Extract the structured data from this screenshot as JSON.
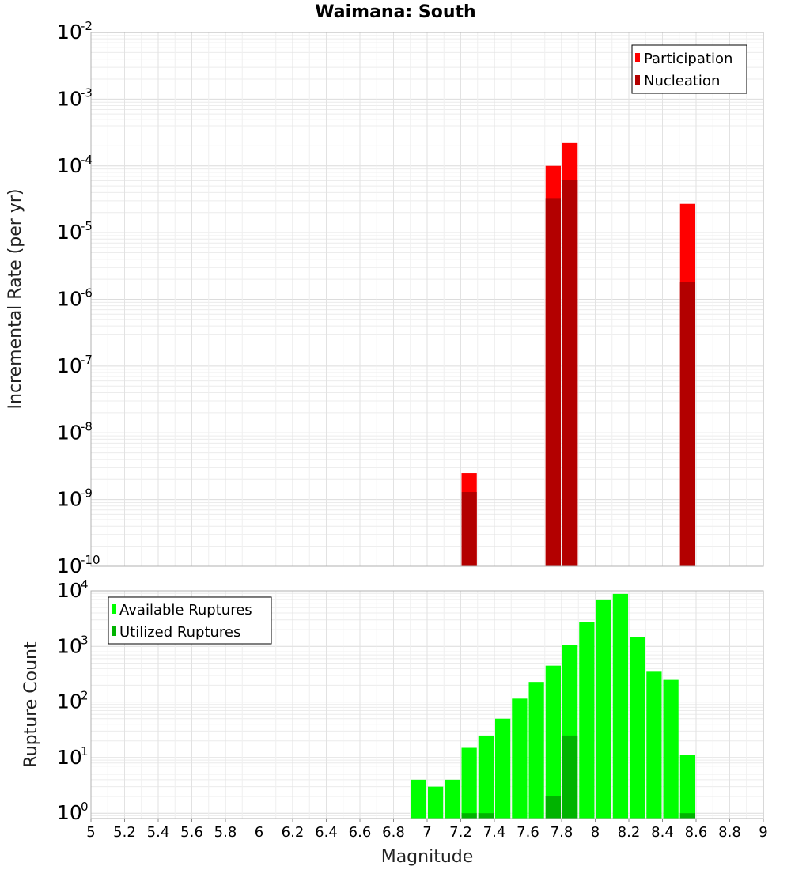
{
  "chart_data": [
    {
      "type": "bar",
      "title": "Waimana: South",
      "xlabel": "",
      "ylabel": "Incremental Rate (per yr)",
      "yscale": "log",
      "xlim": [
        5,
        9
      ],
      "ylim": [
        1e-10,
        0.01
      ],
      "grid": true,
      "legend_position": "top-right",
      "bar_width": 0.1,
      "colors": {
        "Participation": "#ff0000",
        "Nucleation": "#b30000"
      },
      "series": [
        {
          "name": "Participation",
          "x": [
            7.25,
            7.75,
            7.85,
            8.55
          ],
          "values": [
            2.5e-09,
            0.0001,
            0.00022,
            2.7e-05
          ]
        },
        {
          "name": "Nucleation",
          "x": [
            7.25,
            7.75,
            7.85,
            8.55
          ],
          "values": [
            1.3e-09,
            3.3e-05,
            6.2e-05,
            1.8e-06
          ]
        }
      ],
      "y_tick_exponents": [
        "-10",
        "-9",
        "-8",
        "-7",
        "-6",
        "-5",
        "-4",
        "-3",
        "-2"
      ]
    },
    {
      "type": "bar",
      "title": "",
      "xlabel": "Magnitude",
      "ylabel": "Rupture Count",
      "yscale": "log",
      "xlim": [
        5,
        9
      ],
      "ylim": [
        0.8,
        10000
      ],
      "grid": true,
      "legend_position": "top-left",
      "bar_width": 0.1,
      "colors": {
        "Available Ruptures": "#00ff00",
        "Utilized Ruptures": "#00b300"
      },
      "series": [
        {
          "name": "Available Ruptures",
          "x": [
            6.95,
            7.05,
            7.15,
            7.25,
            7.35,
            7.45,
            7.55,
            7.65,
            7.75,
            7.85,
            7.95,
            8.05,
            8.15,
            8.25,
            8.35,
            8.45,
            8.55
          ],
          "values": [
            4,
            3,
            4,
            15,
            25,
            50,
            115,
            230,
            450,
            1050,
            2700,
            7000,
            8800,
            1450,
            350,
            250,
            11
          ]
        },
        {
          "name": "Utilized Ruptures",
          "x": [
            7.25,
            7.35,
            7.75,
            7.85,
            8.55
          ],
          "values": [
            1,
            1,
            2,
            25,
            1
          ]
        }
      ],
      "x_ticks": [
        "5",
        "5.2",
        "5.4",
        "5.6",
        "5.8",
        "6",
        "6.2",
        "6.4",
        "6.6",
        "6.8",
        "7",
        "7.2",
        "7.4",
        "7.6",
        "7.8",
        "8",
        "8.2",
        "8.4",
        "8.6",
        "8.8",
        "9"
      ],
      "y_tick_exponents": [
        "0",
        "1",
        "2",
        "3",
        "4"
      ]
    }
  ]
}
